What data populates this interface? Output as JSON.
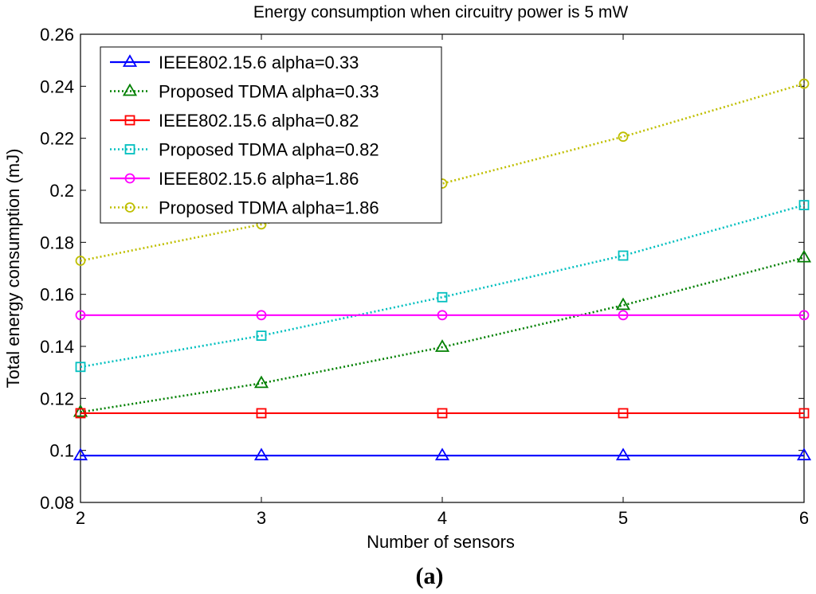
{
  "chart_data": {
    "type": "line",
    "title": "Energy consumption when circuitry power is 5 mW",
    "xlabel": "Number of sensors",
    "ylabel": "Total energy consumption (mJ)",
    "xlim": [
      2,
      6
    ],
    "ylim": [
      0.08,
      0.26
    ],
    "x": [
      2,
      3,
      4,
      5,
      6
    ],
    "xticks": [
      "2",
      "3",
      "4",
      "5",
      "6"
    ],
    "yticks": [
      0.08,
      0.1,
      0.12,
      0.14,
      0.16,
      0.18,
      0.2,
      0.22,
      0.24,
      0.26
    ],
    "ytick_labels": [
      "0.08",
      "0.1",
      "0.12",
      "0.14",
      "0.16",
      "0.18",
      "0.2",
      "0.22",
      "0.24",
      "0.26"
    ],
    "grid": false,
    "legend_position": "top-left",
    "series": [
      {
        "name": "IEEE802.15.6 alpha=0.33",
        "values": [
          0.098,
          0.098,
          0.098,
          0.098,
          0.098
        ],
        "color": "#0000ff",
        "style": "solid",
        "marker": "triangle"
      },
      {
        "name": "Proposed TDMA alpha=0.33",
        "values": [
          0.1147,
          0.1258,
          0.1397,
          0.1558,
          0.1741
        ],
        "color": "#008000",
        "style": "dotted",
        "marker": "triangle"
      },
      {
        "name": "IEEE802.15.6 alpha=0.82",
        "values": [
          0.1143,
          0.1143,
          0.1143,
          0.1143,
          0.1143
        ],
        "color": "#ff0000",
        "style": "solid",
        "marker": "square"
      },
      {
        "name": "Proposed TDMA alpha=0.82",
        "values": [
          0.1321,
          0.1441,
          0.1589,
          0.1749,
          0.1943
        ],
        "color": "#00bfbf",
        "style": "dotted",
        "marker": "square"
      },
      {
        "name": "IEEE802.15.6 alpha=1.86",
        "values": [
          0.152,
          0.152,
          0.152,
          0.152,
          0.152
        ],
        "color": "#ff00ff",
        "style": "solid",
        "marker": "circle"
      },
      {
        "name": "Proposed TDMA alpha=1.86",
        "values": [
          0.1729,
          0.1869,
          0.2026,
          0.2206,
          0.241
        ],
        "color": "#bfbf00",
        "style": "dotted",
        "marker": "circle"
      }
    ],
    "caption": "(a)"
  }
}
